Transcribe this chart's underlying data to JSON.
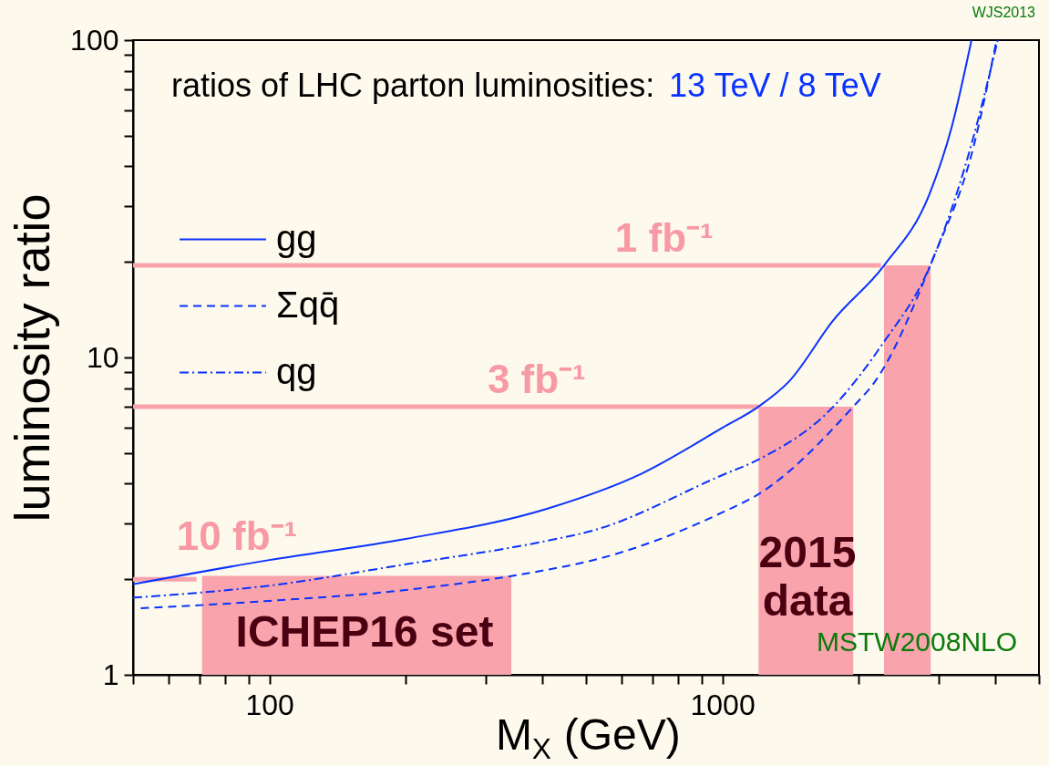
{
  "chart_data": {
    "type": "line",
    "xlabel": "M$_{X}$ (GeV)",
    "ylabel": "luminosity ratio",
    "log": "xy",
    "grid": false,
    "legend": "top left",
    "marker": "none",
    "xlim": [
      50,
      5000
    ],
    "ylim": [
      1,
      100
    ],
    "xticks": [
      {
        "value": 50,
        "label": null
      },
      {
        "value": 60,
        "label": null
      },
      {
        "value": 70,
        "label": null
      },
      {
        "value": 80,
        "label": null
      },
      {
        "value": 90,
        "label": null
      },
      100,
      {
        "value": 200,
        "label": null
      },
      {
        "value": 300,
        "label": null
      },
      {
        "value": 400,
        "label": null
      },
      {
        "value": 500,
        "label": null
      },
      {
        "value": 600,
        "label": null
      },
      {
        "value": 700,
        "label": null
      },
      {
        "value": 800,
        "label": null
      },
      {
        "value": 900,
        "label": null
      },
      1000,
      {
        "value": 2000,
        "label": null
      },
      {
        "value": 3000,
        "label": null
      },
      {
        "value": 4000,
        "label": null
      },
      {
        "value": 5000,
        "label": null
      }
    ],
    "yticks": [
      1,
      {
        "value": 2,
        "label": null
      },
      {
        "value": 3,
        "label": null
      },
      {
        "value": 4,
        "label": null
      },
      {
        "value": 5,
        "label": null
      },
      {
        "value": 6,
        "label": null
      },
      {
        "value": 7,
        "label": null
      },
      {
        "value": 8,
        "label": null
      },
      {
        "value": 9,
        "label": null
      },
      10,
      {
        "value": 20,
        "label": null
      },
      {
        "value": 30,
        "label": null
      },
      {
        "value": 40,
        "label": null
      },
      {
        "value": 50,
        "label": null
      },
      {
        "value": 60,
        "label": null
      },
      {
        "value": 70,
        "label": null
      },
      {
        "value": 80,
        "label": null
      },
      {
        "value": 90,
        "label": null
      },
      100
    ],
    "series": [
      {
        "name": "gg",
        "color": "#0a32ff",
        "line_style": "solid",
        "x": [
          50,
          100,
          200,
          408,
          662,
          1000,
          1202,
          1403,
          1758,
          2275,
          2872,
          3206,
          3548
        ],
        "values": [
          1.93,
          2.3,
          2.68,
          3.33,
          4.3,
          6.0,
          7.0,
          8.4,
          13.1,
          19.5,
          33,
          53,
          100
        ]
      },
      {
        "name": "Σqq̄",
        "color": "#0a32ff",
        "line_style": "dashed",
        "x": [
          52,
          100,
          200,
          408,
          514,
          1000,
          1202,
          1945,
          2173,
          2910,
          3597,
          4030
        ],
        "values": [
          1.62,
          1.71,
          1.85,
          2.14,
          2.29,
          3.25,
          3.71,
          7.0,
          8.4,
          20.3,
          47,
          100
        ]
      },
      {
        "name": "qg",
        "color": "#0a32ff",
        "line_style": "dashdot",
        "x": [
          50,
          100,
          200,
          408,
          514,
          1000,
          1202,
          1758,
          2254,
          2872,
          3548,
          4055
        ],
        "values": [
          1.75,
          1.91,
          2.23,
          2.64,
          2.84,
          4.26,
          4.77,
          7.0,
          11.0,
          19.4,
          47,
          100
        ]
      },
      {
        "type": "line",
        "color": "#f9a3ad",
        "line_style": "solid",
        "x": [
          50,
          2240
        ],
        "values": [
          19.5,
          19.5
        ]
      },
      {
        "type": "line",
        "color": "#f9a3ad",
        "line_style": "solid",
        "x": [
          50,
          1202
        ],
        "values": [
          7.0,
          7.0
        ]
      },
      {
        "type": "line",
        "color": "#f9a3ad",
        "line_style": "solid",
        "x": [
          50,
          69
        ],
        "values": [
          2.0,
          2.0
        ]
      },
      {
        "type": "area",
        "color": "#f9a3ad",
        "x": [
          2275,
          2884
        ],
        "values": [
          19.5,
          19.5
        ]
      },
      {
        "type": "area",
        "color": "#f9a3ad",
        "x": [
          1202,
          1945
        ],
        "values": [
          7.0,
          7.0
        ]
      },
      {
        "type": "area",
        "color": "#f9a3ad",
        "x": [
          71,
          342
        ],
        "values": [
          2.05,
          2.05
        ]
      }
    ],
    "annotations": [
      "ratios of LHC parton luminosities:",
      "13 TeV / 8 TeV",
      "WJS2013",
      {
        "text": "1 fb⁻¹",
        "x": 744,
        "y": 19.5
      },
      {
        "text": "3 fb⁻¹",
        "x": 389,
        "y": 7.0
      },
      "10 fb⁻¹",
      "ICHEP16 set",
      "2015 data",
      "MSTW2008NLO"
    ]
  }
}
